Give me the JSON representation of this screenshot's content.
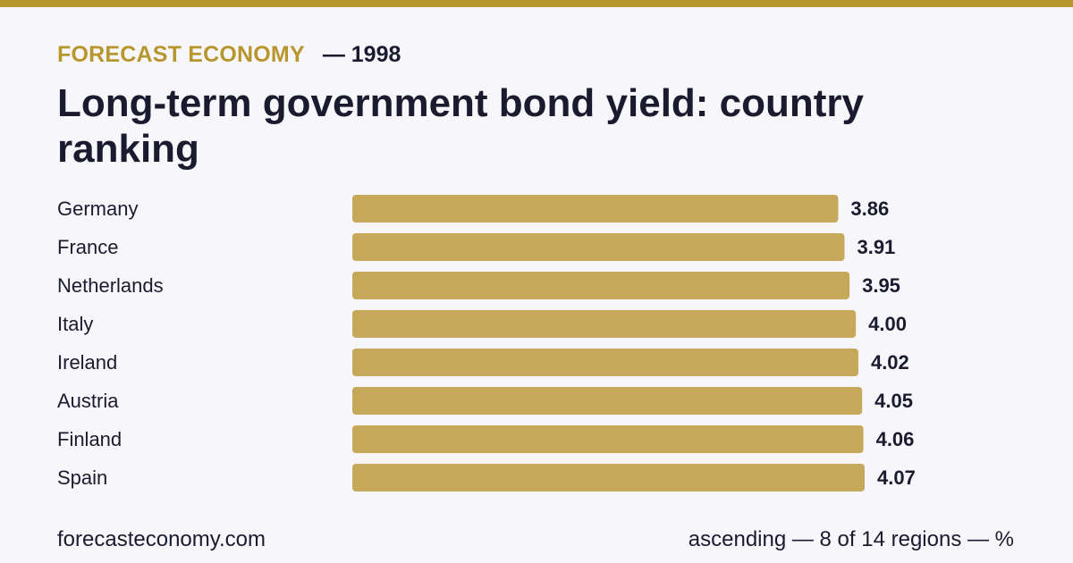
{
  "header": {
    "brand": "FORECAST ECONOMY",
    "year_text": "— 1998",
    "title": "Long-term government bond yield: country ranking"
  },
  "chart_data": {
    "type": "bar",
    "orientation": "horizontal",
    "title": "Long-term government bond yield: country ranking",
    "categories": [
      "Germany",
      "France",
      "Netherlands",
      "Italy",
      "Ireland",
      "Austria",
      "Finland",
      "Spain"
    ],
    "values": [
      3.86,
      3.91,
      3.95,
      4.0,
      4.02,
      4.05,
      4.06,
      4.07
    ],
    "value_labels": [
      "3.86",
      "3.91",
      "3.95",
      "4.00",
      "4.02",
      "4.05",
      "4.06",
      "4.07"
    ],
    "xlim": [
      0,
      4.07
    ],
    "grid": false,
    "legend": "none",
    "bar_color": "#c6a85b"
  },
  "footer": {
    "source": "forecasteconomy.com",
    "note": "ascending — 8 of 14 regions — %"
  },
  "colors": {
    "accent": "#b8962e",
    "bar": "#c6a85b",
    "text": "#1b1b2f",
    "background": "#f7f7fb"
  }
}
